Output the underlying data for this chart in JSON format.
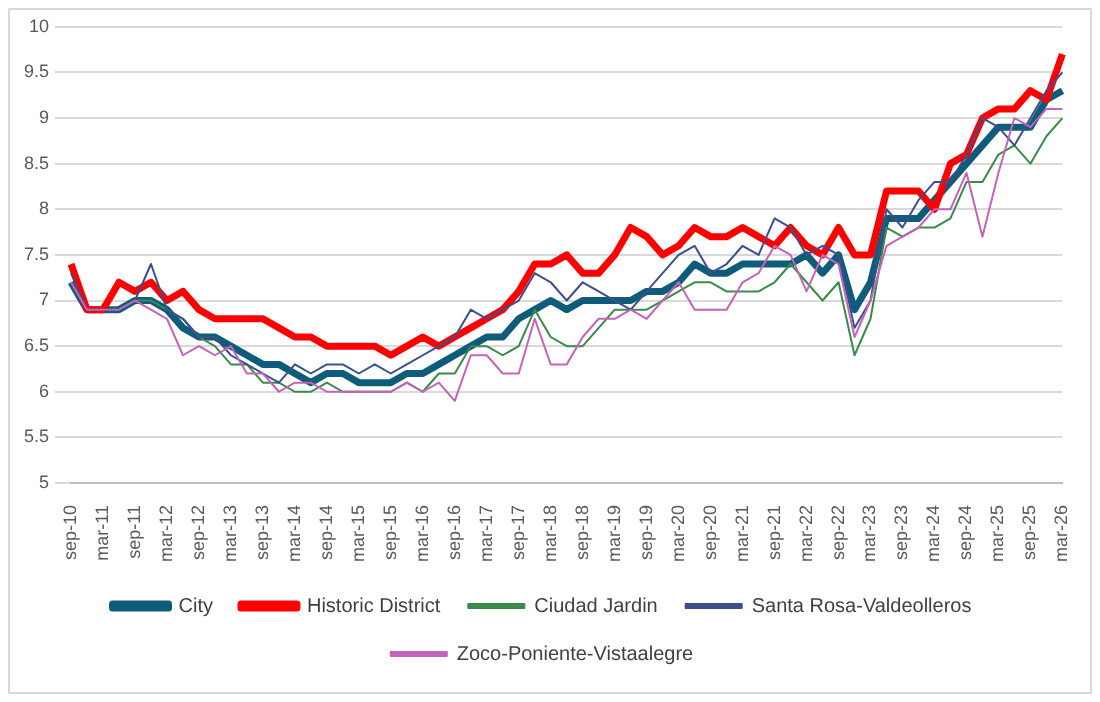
{
  "chart_data": {
    "type": "line",
    "categories": [
      "sep-10",
      null,
      "mar-11",
      null,
      "sep-11",
      null,
      "mar-12",
      null,
      "sep-12",
      null,
      "mar-13",
      null,
      "sep-13",
      null,
      "mar-14",
      null,
      "sep-14",
      null,
      "mar-15",
      null,
      "sep-15",
      null,
      "mar-16",
      null,
      "sep-16",
      null,
      "mar-17",
      null,
      "sep-17",
      null,
      "mar-18",
      null,
      "sep-18",
      null,
      "mar-19",
      null,
      "sep-19",
      null,
      "mar-20",
      null,
      "sep-20",
      null,
      "mar-21",
      null,
      "sep-21",
      null,
      "mar-22",
      null,
      "sep-22",
      null,
      "mar-23",
      null,
      "sep-23",
      null,
      "mar-24",
      null,
      "sep-24",
      null,
      "mar-25",
      null,
      "sep-25",
      null,
      "mar-26"
    ],
    "series": [
      {
        "name": "City",
        "color": "#0e5c7a",
        "values": [
          7.2,
          6.9,
          6.9,
          6.9,
          7.0,
          7.0,
          6.9,
          6.7,
          6.6,
          6.6,
          6.5,
          6.4,
          6.3,
          6.3,
          6.2,
          6.1,
          6.2,
          6.2,
          6.1,
          6.1,
          6.1,
          6.2,
          6.2,
          6.3,
          6.4,
          6.5,
          6.6,
          6.6,
          6.8,
          6.9,
          7.0,
          6.9,
          7.0,
          7.0,
          7.0,
          7.0,
          7.1,
          7.1,
          7.2,
          7.4,
          7.3,
          7.3,
          7.4,
          7.4,
          7.4,
          7.4,
          7.5,
          7.3,
          7.5,
          6.9,
          7.2,
          7.9,
          7.9,
          7.9,
          8.1,
          8.3,
          8.5,
          8.7,
          8.9,
          8.9,
          8.9,
          9.2,
          9.3
        ]
      },
      {
        "name": "Historic District",
        "color": "#ff0000",
        "values": [
          7.4,
          6.9,
          6.9,
          7.2,
          7.1,
          7.2,
          7.0,
          7.1,
          6.9,
          6.8,
          6.8,
          6.8,
          6.8,
          6.7,
          6.6,
          6.6,
          6.5,
          6.5,
          6.5,
          6.5,
          6.4,
          6.5,
          6.6,
          6.5,
          6.6,
          6.7,
          6.8,
          6.9,
          7.1,
          7.4,
          7.4,
          7.5,
          7.3,
          7.3,
          7.5,
          7.8,
          7.7,
          7.5,
          7.6,
          7.8,
          7.7,
          7.7,
          7.8,
          7.7,
          7.6,
          7.8,
          7.6,
          7.5,
          7.8,
          7.5,
          7.5,
          8.2,
          8.2,
          8.2,
          8.0,
          8.5,
          8.6,
          9.0,
          9.1,
          9.1,
          9.3,
          9.2,
          9.7
        ]
      },
      {
        "name": "Ciudad Jardin",
        "color": "#3a8a4a",
        "values": [
          7.2,
          6.9,
          6.9,
          6.9,
          7.0,
          7.0,
          6.9,
          6.8,
          6.6,
          6.5,
          6.3,
          6.3,
          6.1,
          6.1,
          6.0,
          6.0,
          6.1,
          6.0,
          6.0,
          6.0,
          6.0,
          6.1,
          6.0,
          6.2,
          6.2,
          6.5,
          6.5,
          6.4,
          6.5,
          6.9,
          6.6,
          6.5,
          6.5,
          6.7,
          6.9,
          6.9,
          6.9,
          7.0,
          7.1,
          7.2,
          7.2,
          7.1,
          7.1,
          7.1,
          7.2,
          7.4,
          7.2,
          7.0,
          7.2,
          6.4,
          6.8,
          7.8,
          7.7,
          7.8,
          7.8,
          7.9,
          8.3,
          8.3,
          8.6,
          8.7,
          8.5,
          8.8,
          9.0
        ]
      },
      {
        "name": "Santa Rosa-Valdeolleros",
        "color": "#3c4f8c",
        "values": [
          7.3,
          6.9,
          6.9,
          6.9,
          7.0,
          7.4,
          6.9,
          6.8,
          6.6,
          6.6,
          6.4,
          6.3,
          6.2,
          6.1,
          6.3,
          6.2,
          6.3,
          6.3,
          6.2,
          6.3,
          6.2,
          6.3,
          6.4,
          6.5,
          6.6,
          6.9,
          6.8,
          6.9,
          7.0,
          7.3,
          7.2,
          7.0,
          7.2,
          7.1,
          7.0,
          6.9,
          7.1,
          7.3,
          7.5,
          7.6,
          7.3,
          7.4,
          7.6,
          7.5,
          7.9,
          7.8,
          7.5,
          7.6,
          7.5,
          6.7,
          7.0,
          8.0,
          7.8,
          8.1,
          8.3,
          8.3,
          8.6,
          9.0,
          8.9,
          8.7,
          9.0,
          9.3,
          9.5
        ]
      },
      {
        "name": "Zoco-Poniente-Vistaalegre",
        "color": "#c464b8",
        "values": [
          7.2,
          6.9,
          6.9,
          6.9,
          7.0,
          6.9,
          6.8,
          6.4,
          6.5,
          6.4,
          6.5,
          6.2,
          6.2,
          6.0,
          6.1,
          6.1,
          6.0,
          6.0,
          6.0,
          6.0,
          6.0,
          6.1,
          6.0,
          6.1,
          5.9,
          6.4,
          6.4,
          6.2,
          6.2,
          6.8,
          6.3,
          6.3,
          6.6,
          6.8,
          6.8,
          6.9,
          6.8,
          7.0,
          7.2,
          6.9,
          6.9,
          6.9,
          7.2,
          7.3,
          7.6,
          7.5,
          7.1,
          7.5,
          7.4,
          6.6,
          7.0,
          7.6,
          7.7,
          7.8,
          8.0,
          8.0,
          8.4,
          7.7,
          8.4,
          9.0,
          8.9,
          9.1,
          9.1
        ]
      }
    ],
    "ylim": [
      5,
      10
    ],
    "yticks": [
      5,
      5.5,
      6,
      6.5,
      7,
      7.5,
      8,
      8.5,
      9,
      9.5,
      10
    ],
    "grid": "y",
    "legend": "bottom",
    "marker": "none",
    "line_style": "solid"
  }
}
